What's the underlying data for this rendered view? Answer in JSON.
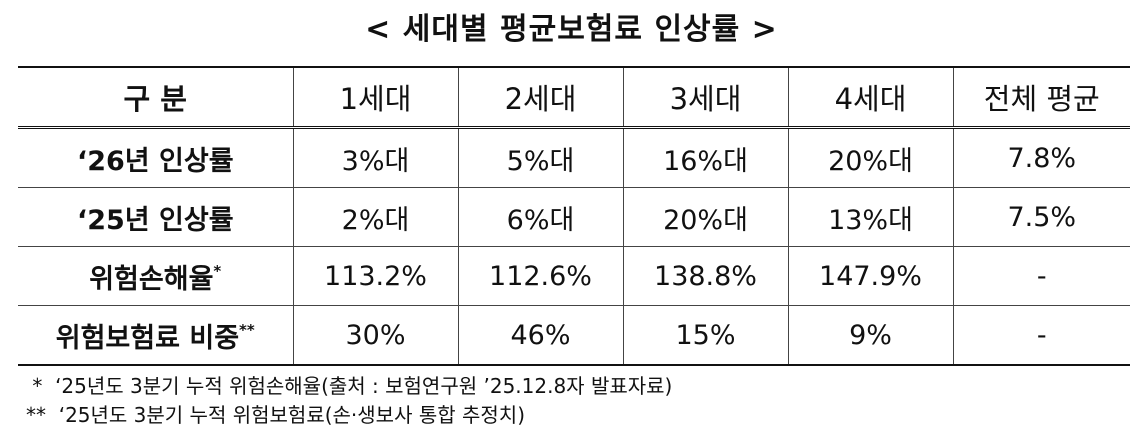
{
  "title": "< 세대별 평균보험료 인상률 >",
  "table": {
    "header": [
      "구 분",
      "1세대",
      "2세대",
      "3세대",
      "4세대",
      "전체 평균"
    ],
    "rows": [
      {
        "label": "‘26년 인상률",
        "mark": "",
        "cells": [
          "3%대",
          "5%대",
          "16%대",
          "20%대",
          "7.8%"
        ]
      },
      {
        "label": "‘25년 인상률",
        "mark": "",
        "cells": [
          "2%대",
          "6%대",
          "20%대",
          "13%대",
          "7.5%"
        ]
      },
      {
        "label": "위험손해율",
        "mark": "*",
        "cells": [
          "113.2%",
          "112.6%",
          "138.8%",
          "147.9%",
          "-"
        ]
      },
      {
        "label": "위험보험료 비중",
        "mark": "**",
        "cells": [
          "30%",
          "46%",
          "15%",
          "9%",
          "-"
        ]
      }
    ]
  },
  "notes": [
    " *  ‘25년도 3분기 누적 위험손해율(출처 : 보험연구원 ’25.12.8자 발표자료)",
    "**  ‘25년도 3분기 누적 위험보험료(손·생보사 통합 추정치)"
  ]
}
